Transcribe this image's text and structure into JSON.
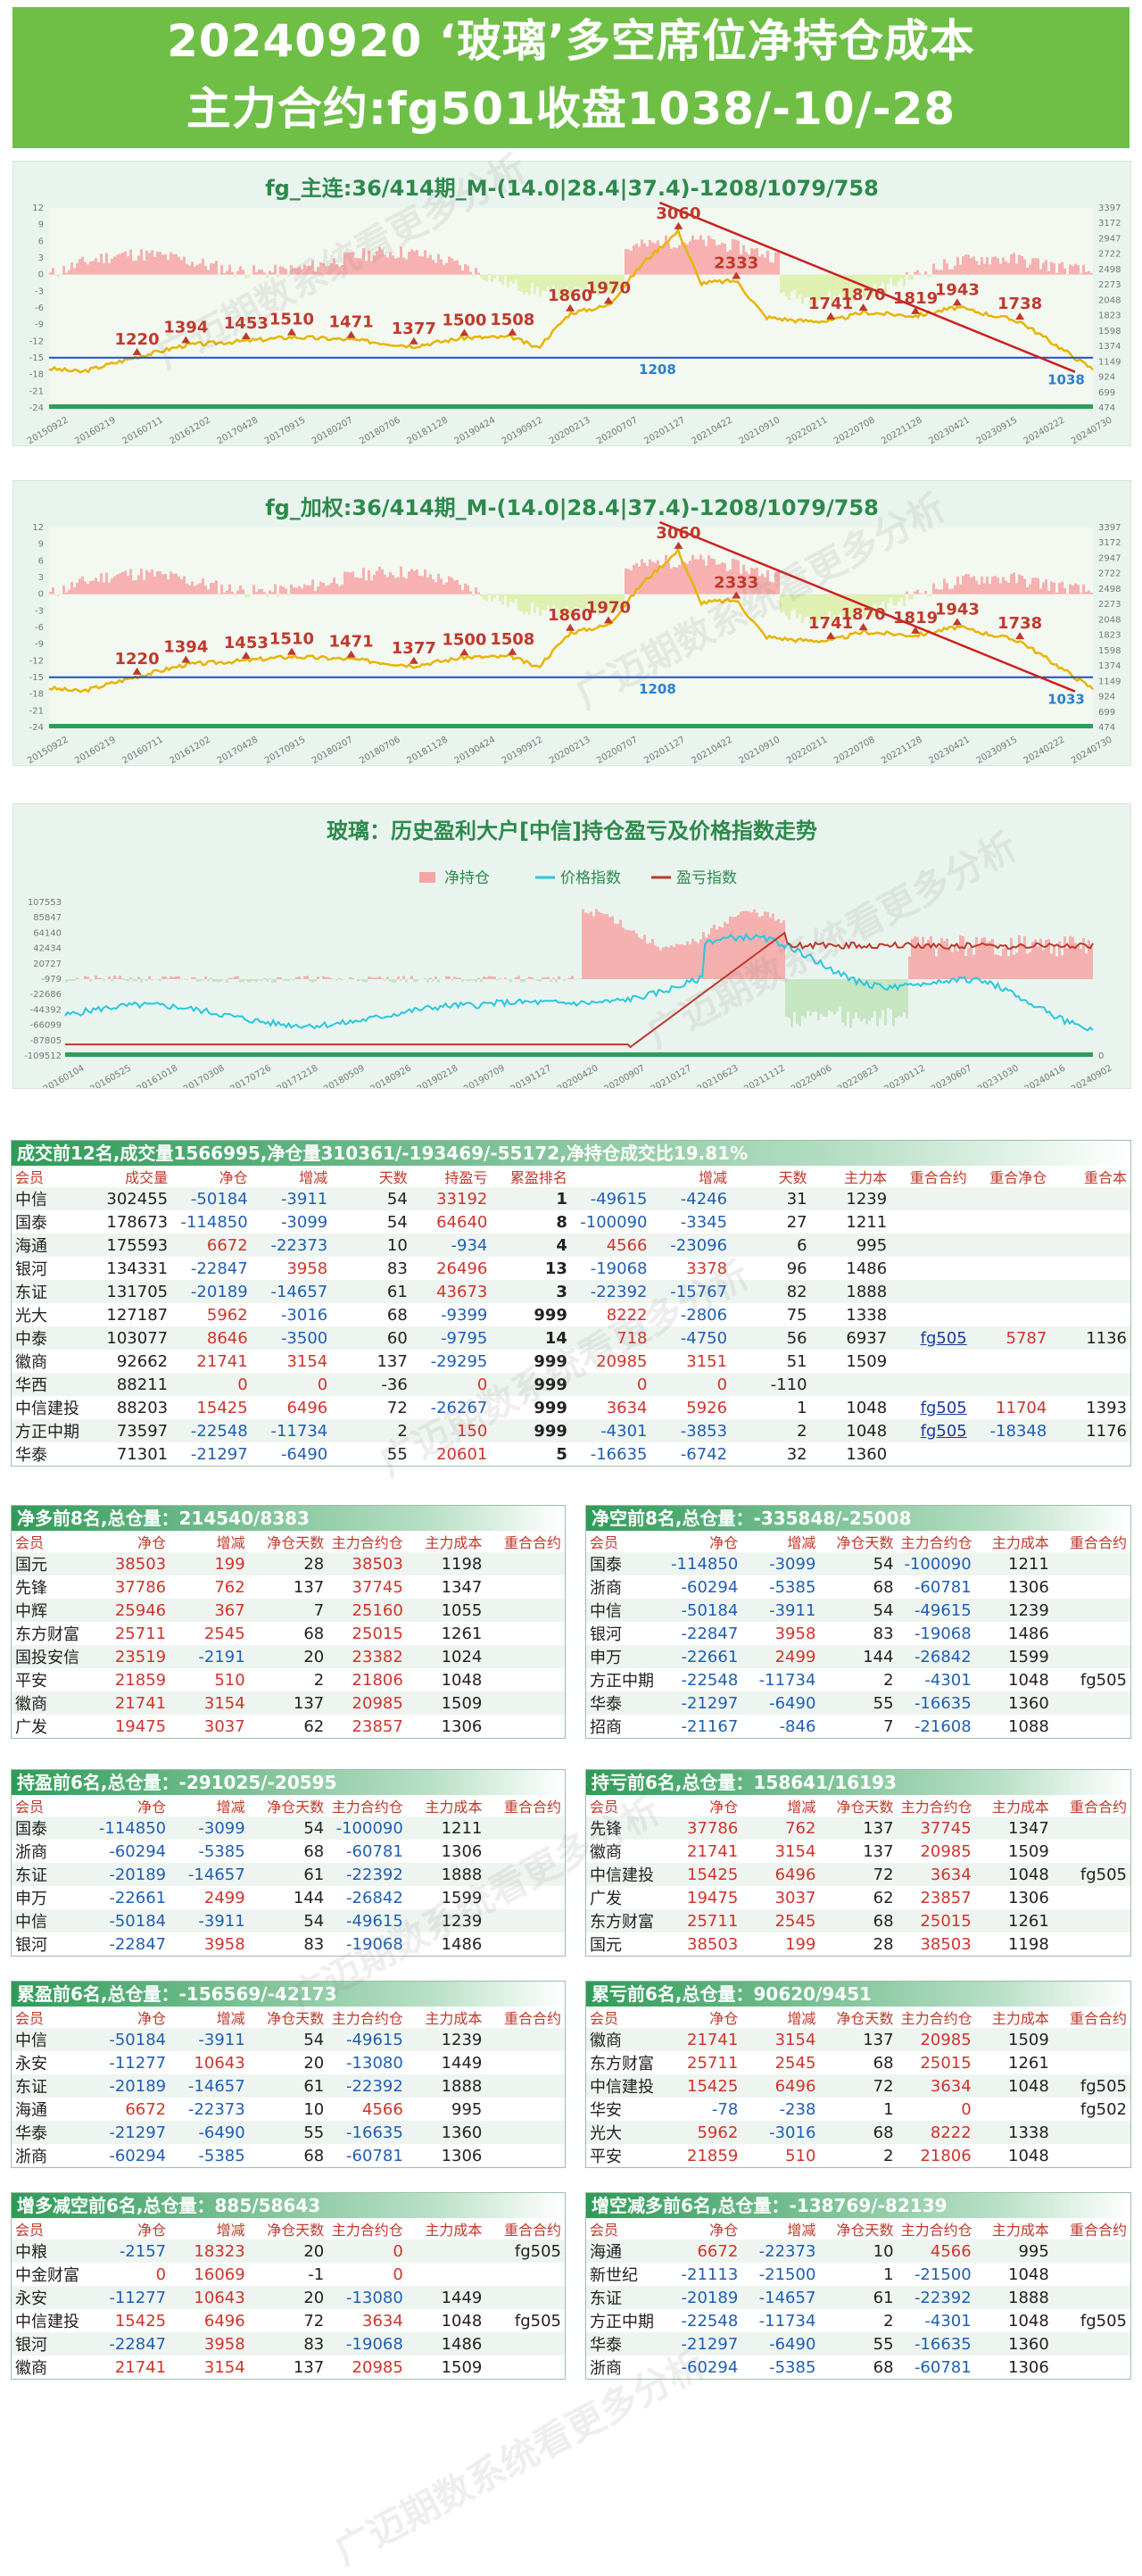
{
  "header": {
    "line1": "20240920 ‘玻璃’多空席位净持仓成本",
    "line2": "主力合约:fg501收盘1038/-10/-28"
  },
  "watermark": "广迈期数系统看更多分析",
  "colors": {
    "accent": "#6fbf47",
    "price_line": "#e8b400",
    "trend_line": "#cc1f1f",
    "level_line": "#1f4fbf",
    "pos_fill": "#f6a5a5",
    "neg_fill": "#dbeea7"
  },
  "chart_data": [
    {
      "type": "line",
      "title": "fg_主连:36/414期_M-(14.0|28.4|37.4)-1208/1079/758",
      "left_ticks": [
        "12",
        "9",
        "6",
        "3",
        "0",
        "-3",
        "-6",
        "-9",
        "-12",
        "-15",
        "-18",
        "-21",
        "-24"
      ],
      "right_ticks": [
        "3397",
        "3172",
        "2947",
        "2722",
        "2498",
        "2273",
        "2048",
        "1823",
        "1598",
        "1374",
        "1149",
        "924",
        "699",
        "474"
      ],
      "x_ticks": [
        "20150922",
        "20160219",
        "20160711",
        "20161202",
        "20170428",
        "20170915",
        "20180207",
        "20180706",
        "20181128",
        "20190424",
        "20190912",
        "20200213",
        "20200707",
        "20201127",
        "20210422",
        "20210910",
        "20220211",
        "20220708",
        "20221128",
        "20230421",
        "20230915",
        "20240222",
        "20240730"
      ],
      "peak_labels": [
        {
          "text": "1220",
          "x": 0.108,
          "y": 1220
        },
        {
          "text": "1394",
          "x": 0.168,
          "y": 1394
        },
        {
          "text": "1453",
          "x": 0.242,
          "y": 1453
        },
        {
          "text": "1510",
          "x": 0.298,
          "y": 1510
        },
        {
          "text": "1471",
          "x": 0.371,
          "y": 1471
        },
        {
          "text": "1377",
          "x": 0.448,
          "y": 1377
        },
        {
          "text": "1500",
          "x": 0.51,
          "y": 1500
        },
        {
          "text": "1508",
          "x": 0.569,
          "y": 1508
        },
        {
          "text": "1860",
          "x": 0.64,
          "y": 1860
        },
        {
          "text": "1970",
          "x": 0.687,
          "y": 1970
        },
        {
          "text": "3060",
          "x": 0.773,
          "y": 3060
        },
        {
          "text": "2333",
          "x": 0.844,
          "y": 2333
        },
        {
          "text": "1741",
          "x": 0.96,
          "y": 1741
        },
        {
          "text": "1870",
          "x": 1.0,
          "y": 1870
        }
      ],
      "peak_labels_right": [
        {
          "text": "1819"
        },
        {
          "text": "1943"
        },
        {
          "text": "1738"
        }
      ],
      "level_label": "1208",
      "end_label": "1038"
    },
    {
      "type": "line",
      "title": "fg_加权:36/414期_M-(14.0|28.4|37.4)-1208/1079/758",
      "left_ticks": [
        "12",
        "9",
        "6",
        "3",
        "0",
        "-3",
        "-6",
        "-9",
        "-12",
        "-15",
        "-18",
        "-21",
        "-24"
      ],
      "right_ticks": [
        "3397",
        "3172",
        "2947",
        "2722",
        "2498",
        "2273",
        "2048",
        "1823",
        "1598",
        "1374",
        "1149",
        "924",
        "699",
        "474"
      ],
      "x_ticks": [
        "20150922",
        "20160219",
        "20160711",
        "20161202",
        "20170428",
        "20170915",
        "20180207",
        "20180706",
        "20181128",
        "20190424",
        "20190912",
        "20200213",
        "20200707",
        "20201127",
        "20210422",
        "20210910",
        "20220211",
        "20220708",
        "20221128",
        "20230421",
        "20230915",
        "20240222",
        "20240730"
      ],
      "level_label": "1208",
      "end_label": "1033"
    },
    {
      "type": "area",
      "title": "玻璃：历史盈利大户[中信]持仓盈亏及价格指数走势",
      "legend": [
        "净持仓",
        "价格指数",
        "盈亏指数"
      ],
      "left_ticks": [
        "107553",
        "85847",
        "64140",
        "42434",
        "20727",
        "-979",
        "-22686",
        "-44392",
        "-66099",
        "-87805",
        "-109512"
      ],
      "x_ticks": [
        "20160104",
        "20160525",
        "20161018",
        "20170308",
        "20170726",
        "20171218",
        "20180509",
        "20180926",
        "20190218",
        "20190709",
        "20191127",
        "20200420",
        "20200907",
        "20210127",
        "20210623",
        "20211112",
        "20220406",
        "20220823",
        "20230112",
        "20230607",
        "20231030",
        "20240416",
        "20240902"
      ],
      "right_zero": "0"
    }
  ],
  "tables": {
    "main": {
      "title": "成交前12名,成交量1566995,净仓量310361/-193469/-55172,净持仓成交比19.81%",
      "headers": [
        "会员",
        "成交量",
        "净仓",
        "增减",
        "天数",
        "持盈亏",
        "累盈排名",
        "",
        "增减",
        "天数",
        "主力本",
        "重合合约",
        "重合净仓",
        "重合本"
      ],
      "rows": [
        [
          "中信",
          "302455",
          "-50184",
          "-3911",
          "54",
          "33192",
          "1",
          "-49615",
          "-4246",
          "31",
          "1239",
          "",
          "",
          ""
        ],
        [
          "国泰",
          "178673",
          "-114850",
          "-3099",
          "54",
          "64640",
          "8",
          "-100090",
          "-3345",
          "27",
          "1211",
          "",
          "",
          ""
        ],
        [
          "海通",
          "175593",
          "6672",
          "-22373",
          "10",
          "-934",
          "4",
          "4566",
          "-23096",
          "6",
          "995",
          "",
          "",
          ""
        ],
        [
          "银河",
          "134331",
          "-22847",
          "3958",
          "83",
          "26496",
          "13",
          "-19068",
          "3378",
          "96",
          "1486",
          "",
          "",
          ""
        ],
        [
          "东证",
          "131705",
          "-20189",
          "-14657",
          "61",
          "43673",
          "3",
          "-22392",
          "-15767",
          "82",
          "1888",
          "",
          "",
          ""
        ],
        [
          "光大",
          "127187",
          "5962",
          "-3016",
          "68",
          "-9399",
          "999",
          "8222",
          "-2806",
          "75",
          "1338",
          "",
          "",
          ""
        ],
        [
          "中泰",
          "103077",
          "8646",
          "-3500",
          "60",
          "-9795",
          "14",
          "718",
          "-4750",
          "56",
          "6937",
          "fg505",
          "5787",
          "1136"
        ],
        [
          "徽商",
          "92662",
          "21741",
          "3154",
          "137",
          "-29295",
          "999",
          "20985",
          "3151",
          "51",
          "1509",
          "",
          "",
          ""
        ],
        [
          "华西",
          "88211",
          "0",
          "0",
          "-36",
          "0",
          "999",
          "0",
          "0",
          "-110",
          "",
          "",
          "",
          ""
        ],
        [
          "中信建投",
          "88203",
          "15425",
          "6496",
          "72",
          "-26267",
          "999",
          "3634",
          "5926",
          "1",
          "1048",
          "fg505",
          "11704",
          "1393"
        ],
        [
          "方正中期",
          "73597",
          "-22548",
          "-11734",
          "2",
          "150",
          "999",
          "-4301",
          "-3853",
          "2",
          "1048",
          "fg505",
          "-18348",
          "1176"
        ],
        [
          "华泰",
          "71301",
          "-21297",
          "-6490",
          "55",
          "20601",
          "5",
          "-16635",
          "-6742",
          "32",
          "1360",
          "",
          "",
          ""
        ]
      ]
    },
    "net_long": {
      "title": "净多前8名,总仓量：214540/8383",
      "headers": [
        "会员",
        "净仓",
        "增减",
        "净仓天数",
        "主力合约仓",
        "主力成本",
        "重合合约"
      ],
      "rows": [
        [
          "国元",
          "38503",
          "199",
          "28",
          "38503",
          "1198",
          ""
        ],
        [
          "先锋",
          "37786",
          "762",
          "137",
          "37745",
          "1347",
          ""
        ],
        [
          "中辉",
          "25946",
          "367",
          "7",
          "25160",
          "1055",
          ""
        ],
        [
          "东方财富",
          "25711",
          "2545",
          "68",
          "25015",
          "1261",
          ""
        ],
        [
          "国投安信",
          "23519",
          "-2191",
          "20",
          "23382",
          "1024",
          ""
        ],
        [
          "平安",
          "21859",
          "510",
          "2",
          "21806",
          "1048",
          ""
        ],
        [
          "徽商",
          "21741",
          "3154",
          "137",
          "20985",
          "1509",
          ""
        ],
        [
          "广发",
          "19475",
          "3037",
          "62",
          "23857",
          "1306",
          ""
        ]
      ]
    },
    "net_short": {
      "title": "净空前8名,总仓量：-335848/-25008",
      "headers": [
        "会员",
        "净仓",
        "增减",
        "净仓天数",
        "主力合约仓",
        "主力成本",
        "重合合约"
      ],
      "rows": [
        [
          "国泰",
          "-114850",
          "-3099",
          "54",
          "-100090",
          "1211",
          ""
        ],
        [
          "浙商",
          "-60294",
          "-5385",
          "68",
          "-60781",
          "1306",
          ""
        ],
        [
          "中信",
          "-50184",
          "-3911",
          "54",
          "-49615",
          "1239",
          ""
        ],
        [
          "银河",
          "-22847",
          "3958",
          "83",
          "-19068",
          "1486",
          ""
        ],
        [
          "申万",
          "-22661",
          "2499",
          "144",
          "-26842",
          "1599",
          ""
        ],
        [
          "方正中期",
          "-22548",
          "-11734",
          "2",
          "-4301",
          "1048",
          "fg505"
        ],
        [
          "华泰",
          "-21297",
          "-6490",
          "55",
          "-16635",
          "1360",
          ""
        ],
        [
          "招商",
          "-21167",
          "-846",
          "7",
          "-21608",
          "1088",
          ""
        ]
      ]
    },
    "hold_profit": {
      "title": "持盈前6名,总仓量：-291025/-20595",
      "headers": [
        "会员",
        "净仓",
        "增减",
        "净仓天数",
        "主力合约仓",
        "主力成本",
        "重合合约"
      ],
      "rows": [
        [
          "国泰",
          "-114850",
          "-3099",
          "54",
          "-100090",
          "1211",
          ""
        ],
        [
          "浙商",
          "-60294",
          "-5385",
          "68",
          "-60781",
          "1306",
          ""
        ],
        [
          "东证",
          "-20189",
          "-14657",
          "61",
          "-22392",
          "1888",
          ""
        ],
        [
          "申万",
          "-22661",
          "2499",
          "144",
          "-26842",
          "1599",
          ""
        ],
        [
          "中信",
          "-50184",
          "-3911",
          "54",
          "-49615",
          "1239",
          ""
        ],
        [
          "银河",
          "-22847",
          "3958",
          "83",
          "-19068",
          "1486",
          ""
        ]
      ]
    },
    "hold_loss": {
      "title": "持亏前6名,总仓量：158641/16193",
      "headers": [
        "会员",
        "净仓",
        "增减",
        "净仓天数",
        "主力合约仓",
        "主力成本",
        "重合合约"
      ],
      "rows": [
        [
          "先锋",
          "37786",
          "762",
          "137",
          "37745",
          "1347",
          ""
        ],
        [
          "徽商",
          "21741",
          "3154",
          "137",
          "20985",
          "1509",
          ""
        ],
        [
          "中信建投",
          "15425",
          "6496",
          "72",
          "3634",
          "1048",
          "fg505"
        ],
        [
          "广发",
          "19475",
          "3037",
          "62",
          "23857",
          "1306",
          ""
        ],
        [
          "东方财富",
          "25711",
          "2545",
          "68",
          "25015",
          "1261",
          ""
        ],
        [
          "国元",
          "38503",
          "199",
          "28",
          "38503",
          "1198",
          ""
        ]
      ]
    },
    "cum_profit": {
      "title": "累盈前6名,总仓量：-156569/-42173",
      "headers": [
        "会员",
        "净仓",
        "增减",
        "净仓天数",
        "主力合约仓",
        "主力成本",
        "重合合约"
      ],
      "rows": [
        [
          "中信",
          "-50184",
          "-3911",
          "54",
          "-49615",
          "1239",
          ""
        ],
        [
          "永安",
          "-11277",
          "10643",
          "20",
          "-13080",
          "1449",
          ""
        ],
        [
          "东证",
          "-20189",
          "-14657",
          "61",
          "-22392",
          "1888",
          ""
        ],
        [
          "海通",
          "6672",
          "-22373",
          "10",
          "4566",
          "995",
          ""
        ],
        [
          "华泰",
          "-21297",
          "-6490",
          "55",
          "-16635",
          "1360",
          ""
        ],
        [
          "浙商",
          "-60294",
          "-5385",
          "68",
          "-60781",
          "1306",
          ""
        ]
      ]
    },
    "cum_loss": {
      "title": "累亏前6名,总仓量：90620/9451",
      "headers": [
        "会员",
        "净仓",
        "增减",
        "净仓天数",
        "主力合约仓",
        "主力成本",
        "重合合约"
      ],
      "rows": [
        [
          "徽商",
          "21741",
          "3154",
          "137",
          "20985",
          "1509",
          ""
        ],
        [
          "东方财富",
          "25711",
          "2545",
          "68",
          "25015",
          "1261",
          ""
        ],
        [
          "中信建投",
          "15425",
          "6496",
          "72",
          "3634",
          "1048",
          "fg505"
        ],
        [
          "华安",
          "-78",
          "-238",
          "1",
          "0",
          "",
          "fg502"
        ],
        [
          "光大",
          "5962",
          "-3016",
          "68",
          "8222",
          "1338",
          ""
        ],
        [
          "平安",
          "21859",
          "510",
          "2",
          "21806",
          "1048",
          ""
        ]
      ]
    },
    "inc_long_dec_short": {
      "title": "增多减空前6名,总仓量：885/58643",
      "headers": [
        "会员",
        "净仓",
        "增减",
        "净仓天数",
        "主力合约仓",
        "主力成本",
        "重合合约"
      ],
      "rows": [
        [
          "中粮",
          "-2157",
          "18323",
          "20",
          "0",
          "",
          "fg505"
        ],
        [
          "中金财富",
          "0",
          "16069",
          "-1",
          "0",
          "",
          ""
        ],
        [
          "永安",
          "-11277",
          "10643",
          "20",
          "-13080",
          "1449",
          ""
        ],
        [
          "中信建投",
          "15425",
          "6496",
          "72",
          "3634",
          "1048",
          "fg505"
        ],
        [
          "银河",
          "-22847",
          "3958",
          "83",
          "-19068",
          "1486",
          ""
        ],
        [
          "徽商",
          "21741",
          "3154",
          "137",
          "20985",
          "1509",
          ""
        ]
      ]
    },
    "inc_short_dec_long": {
      "title": "增空减多前6名,总仓量：-138769/-82139",
      "headers": [
        "会员",
        "净仓",
        "增减",
        "净仓天数",
        "主力合约仓",
        "主力成本",
        "重合合约"
      ],
      "rows": [
        [
          "海通",
          "6672",
          "-22373",
          "10",
          "4566",
          "995",
          ""
        ],
        [
          "新世纪",
          "-21113",
          "-21500",
          "1",
          "-21500",
          "1048",
          ""
        ],
        [
          "东证",
          "-20189",
          "-14657",
          "61",
          "-22392",
          "1888",
          ""
        ],
        [
          "方正中期",
          "-22548",
          "-11734",
          "2",
          "-4301",
          "1048",
          "fg505"
        ],
        [
          "华泰",
          "-21297",
          "-6490",
          "55",
          "-16635",
          "1360",
          ""
        ],
        [
          "浙商",
          "-60294",
          "-5385",
          "68",
          "-60781",
          "1306",
          ""
        ]
      ]
    }
  }
}
